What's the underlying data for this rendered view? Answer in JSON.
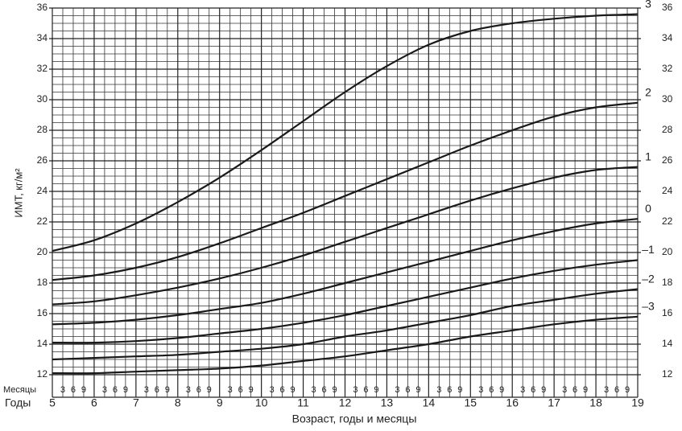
{
  "chart_data": {
    "type": "line",
    "y_label": "ИМТ, кг/м²",
    "x_label": "Возраст, годы и месяцы",
    "month_row_label": "Месяцы",
    "year_row_label": "Годы",
    "x": [
      5,
      6,
      7,
      8,
      9,
      10,
      11,
      12,
      13,
      14,
      15,
      16,
      17,
      18,
      19
    ],
    "xlim": [
      5,
      19
    ],
    "xticks": [
      5,
      6,
      7,
      8,
      9,
      10,
      11,
      12,
      13,
      14,
      15,
      16,
      17,
      18,
      19
    ],
    "xminorticks": [
      {
        "value": 5.25,
        "label": "3"
      },
      {
        "value": 5.5,
        "label": "6"
      },
      {
        "value": 5.75,
        "label": "9"
      },
      {
        "value": 6.25,
        "label": "3"
      },
      {
        "value": 6.5,
        "label": "6"
      },
      {
        "value": 6.75,
        "label": "9"
      },
      {
        "value": 7.25,
        "label": "3"
      },
      {
        "value": 7.5,
        "label": "6"
      },
      {
        "value": 7.75,
        "label": "9"
      },
      {
        "value": 8.25,
        "label": "3"
      },
      {
        "value": 8.5,
        "label": "6"
      },
      {
        "value": 8.75,
        "label": "9"
      },
      {
        "value": 9.25,
        "label": "3"
      },
      {
        "value": 9.5,
        "label": "6"
      },
      {
        "value": 9.75,
        "label": "9"
      },
      {
        "value": 10.25,
        "label": "3"
      },
      {
        "value": 10.5,
        "label": "6"
      },
      {
        "value": 10.75,
        "label": "9"
      },
      {
        "value": 11.25,
        "label": "3"
      },
      {
        "value": 11.5,
        "label": "6"
      },
      {
        "value": 11.75,
        "label": "9"
      },
      {
        "value": 12.25,
        "label": "3"
      },
      {
        "value": 12.5,
        "label": "6"
      },
      {
        "value": 12.75,
        "label": "9"
      },
      {
        "value": 13.25,
        "label": "3"
      },
      {
        "value": 13.5,
        "label": "6"
      },
      {
        "value": 13.75,
        "label": "9"
      },
      {
        "value": 14.25,
        "label": "3"
      },
      {
        "value": 14.5,
        "label": "6"
      },
      {
        "value": 14.75,
        "label": "9"
      },
      {
        "value": 15.25,
        "label": "3"
      },
      {
        "value": 15.5,
        "label": "6"
      },
      {
        "value": 15.75,
        "label": "9"
      },
      {
        "value": 16.25,
        "label": "3"
      },
      {
        "value": 16.5,
        "label": "6"
      },
      {
        "value": 16.75,
        "label": "9"
      },
      {
        "value": 17.25,
        "label": "3"
      },
      {
        "value": 17.5,
        "label": "6"
      },
      {
        "value": 17.75,
        "label": "9"
      },
      {
        "value": 18.25,
        "label": "3"
      },
      {
        "value": 18.5,
        "label": "6"
      },
      {
        "value": 18.75,
        "label": "9"
      }
    ],
    "ylim": [
      12,
      36
    ],
    "yticks": [
      12,
      14,
      16,
      18,
      20,
      22,
      24,
      26,
      28,
      30,
      32,
      34,
      36
    ],
    "yminorticks": [
      12.5,
      13,
      13.5,
      14.5,
      15,
      15.5,
      16.5,
      17,
      17.5,
      18.5,
      19,
      19.5,
      20.5,
      21,
      21.5,
      22.5,
      23,
      23.5,
      24.5,
      25,
      25.5,
      26.5,
      27,
      27.5,
      28.5,
      29,
      29.5,
      30.5,
      31,
      31.5,
      32.5,
      33,
      33.5,
      34.5,
      35,
      35.5
    ],
    "grid": true,
    "series": [
      {
        "name": "3",
        "color": "#1a1a1a",
        "values": [
          20.1,
          20.8,
          21.9,
          23.3,
          24.9,
          26.7,
          28.6,
          30.5,
          32.2,
          33.6,
          34.5,
          35.0,
          35.3,
          35.5,
          35.6
        ]
      },
      {
        "name": "2",
        "color": "#1a1a1a",
        "values": [
          18.2,
          18.5,
          19.0,
          19.7,
          20.6,
          21.6,
          22.6,
          23.7,
          24.8,
          25.9,
          27.0,
          28.0,
          28.9,
          29.5,
          29.8
        ]
      },
      {
        "name": "1",
        "color": "#1a1a1a",
        "values": [
          16.6,
          16.8,
          17.2,
          17.7,
          18.3,
          19.0,
          19.8,
          20.7,
          21.6,
          22.5,
          23.4,
          24.2,
          24.9,
          25.4,
          25.6
        ]
      },
      {
        "name": "0",
        "color": "#1a1a1a",
        "values": [
          15.3,
          15.4,
          15.6,
          15.9,
          16.3,
          16.7,
          17.3,
          18.0,
          18.7,
          19.4,
          20.1,
          20.8,
          21.4,
          21.9,
          22.2
        ]
      },
      {
        "name": "–1",
        "color": "#1a1a1a",
        "values": [
          14.1,
          14.1,
          14.2,
          14.4,
          14.7,
          15.0,
          15.4,
          15.9,
          16.5,
          17.1,
          17.7,
          18.3,
          18.8,
          19.2,
          19.5
        ]
      },
      {
        "name": "–2",
        "color": "#1a1a1a",
        "values": [
          13.0,
          13.1,
          13.2,
          13.3,
          13.5,
          13.7,
          14.0,
          14.5,
          14.9,
          15.4,
          15.9,
          16.5,
          16.9,
          17.3,
          17.6
        ]
      },
      {
        "name": "–3",
        "color": "#1a1a1a",
        "values": [
          12.1,
          12.1,
          12.2,
          12.3,
          12.4,
          12.6,
          12.9,
          13.2,
          13.6,
          14.0,
          14.5,
          14.9,
          15.3,
          15.6,
          15.8
        ]
      }
    ]
  }
}
